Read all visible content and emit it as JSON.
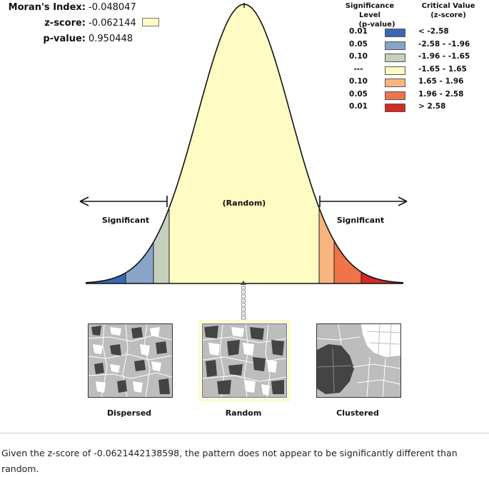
{
  "stats": {
    "morans_index_label": "Moran's Index:",
    "morans_index_value": "-0.048047",
    "zscore_label": "z-score:",
    "zscore_value": "-0.062144",
    "pvalue_label": "p-value:",
    "pvalue_value": "0.950448"
  },
  "legend": {
    "significance_header_1": "Significance Level",
    "significance_header_2": "(p-value)",
    "critical_header_1": "Critical Value",
    "critical_header_2": "(z-score)",
    "rows": [
      {
        "p": "0.01",
        "cv": "< -2.58",
        "color": "#3a66b8"
      },
      {
        "p": "0.05",
        "cv": "-2.58 - -1.96",
        "color": "#88a4c8"
      },
      {
        "p": "0.10",
        "cv": "-1.96 - -1.65",
        "color": "#c4cfbc"
      },
      {
        "p": "---",
        "cv": "-1.65 - 1.65",
        "color": "#fefbc3"
      },
      {
        "p": "0.10",
        "cv": "1.65 - 1.96",
        "color": "#f9b57f"
      },
      {
        "p": "0.05",
        "cv": "1.96 - 2.58",
        "color": "#ef7449"
      },
      {
        "p": "0.01",
        "cv": "> 2.58",
        "color": "#d42a25"
      }
    ]
  },
  "curve": {
    "center_label": "(Random)",
    "left_label": "Significant",
    "right_label": "Significant"
  },
  "maps": {
    "dispersed_label": "Dispersed",
    "random_label": "Random",
    "clustered_label": "Clustered",
    "selected": "Random"
  },
  "footer": {
    "text": "Given the z-score of -0.0621442138598, the pattern does not appear to be significantly different than random."
  }
}
